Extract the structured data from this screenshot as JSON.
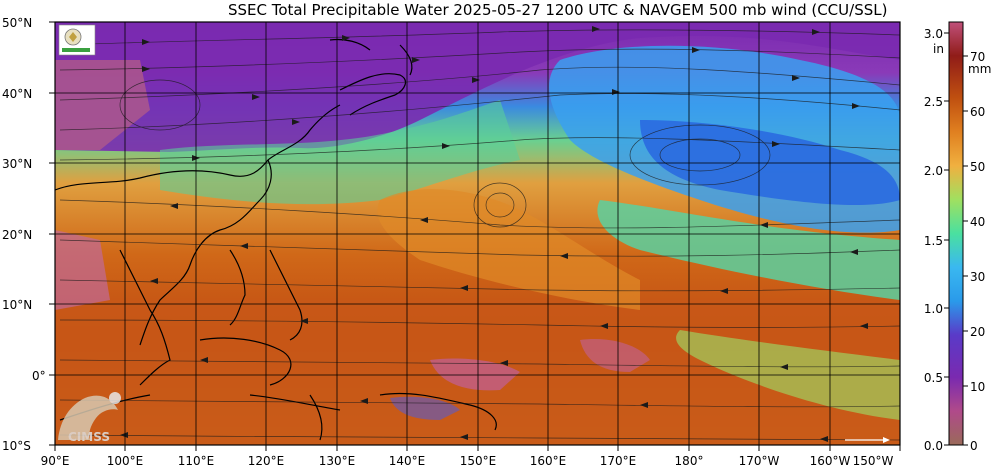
{
  "title": "SSEC Total Precipitable Water  2025-05-27 1200 UTC & NAVGEM 500 mb wind (CCU/SSL)",
  "map": {
    "lat_labels": [
      "50°N",
      "40°N",
      "30°N",
      "20°N",
      "10°N",
      "0°",
      "10°S"
    ],
    "lon_labels": [
      "90°E",
      "100°E",
      "110°E",
      "120°E",
      "130°E",
      "140°E",
      "150°E",
      "160°E",
      "170°E",
      "180°",
      "170°W",
      "160°W",
      "150°W"
    ],
    "lat_range": [
      -10,
      50
    ],
    "lon_range": [
      90,
      210
    ]
  },
  "colorbar": {
    "inch_unit_label": "in",
    "mm_unit_label": "mm",
    "inch_ticks": [
      "3.0",
      "2.5",
      "2.0",
      "1.5",
      "1.0",
      "0.5",
      "0.0"
    ],
    "mm_ticks": [
      "70",
      "60",
      "50",
      "40",
      "30",
      "20",
      "10",
      "0"
    ],
    "colors": [
      "#9a6a5a",
      "#b04a8a",
      "#7a2ab0",
      "#5a3ac8",
      "#2a9aea",
      "#3ab8f0",
      "#4ae0a0",
      "#a0e060",
      "#f0b040",
      "#e08020",
      "#c05010",
      "#901c18",
      "#c0507a"
    ]
  },
  "logos": {
    "cimss_text": "CIMSS"
  },
  "colors": {
    "frame": "#000000",
    "grid": "#000000",
    "dry": "#7a2ab0",
    "moist": "#d06818"
  }
}
